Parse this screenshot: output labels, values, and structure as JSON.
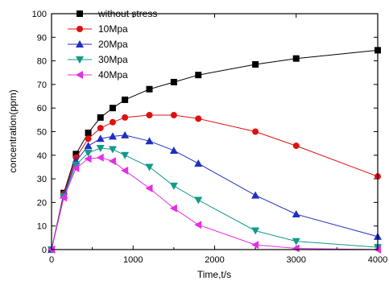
{
  "chart_data": {
    "type": "line",
    "title": "",
    "xlabel": "Time,t/s",
    "ylabel": "concentration(ppm)",
    "xlim": [
      0,
      4000
    ],
    "ylim": [
      0,
      100
    ],
    "x_ticks": [
      0,
      1000,
      2000,
      3000,
      4000
    ],
    "y_ticks": [
      0,
      10,
      20,
      30,
      40,
      50,
      60,
      70,
      80,
      90,
      100
    ],
    "grid": false,
    "legend_position": "top-left",
    "series": [
      {
        "name": "without stress",
        "color": "#000000",
        "marker": "square",
        "x": [
          0,
          150,
          300,
          450,
          600,
          750,
          900,
          1200,
          1500,
          1800,
          2500,
          3000,
          4000
        ],
        "y": [
          0,
          24,
          40.5,
          49.5,
          56,
          60,
          63.5,
          68,
          71,
          74,
          78.5,
          81,
          84.5
        ]
      },
      {
        "name": "10Mpa",
        "color": "#dd1111",
        "marker": "circle",
        "x": [
          0,
          150,
          300,
          450,
          600,
          750,
          900,
          1200,
          1500,
          1800,
          2500,
          3000,
          4000
        ],
        "y": [
          0,
          23.5,
          39,
          47,
          51.5,
          54,
          56,
          57,
          57,
          55.5,
          50,
          44,
          31
        ]
      },
      {
        "name": "20Mpa",
        "color": "#1f2fbf",
        "marker": "triangle-up",
        "x": [
          0,
          150,
          300,
          450,
          600,
          750,
          900,
          1200,
          1500,
          1800,
          2500,
          3000,
          4000
        ],
        "y": [
          0,
          23,
          37.5,
          44,
          47,
          48,
          48.5,
          46,
          42,
          36.5,
          23,
          15,
          5.5
        ]
      },
      {
        "name": "30Mpa",
        "color": "#119a8a",
        "marker": "triangle-down",
        "x": [
          0,
          150,
          300,
          450,
          600,
          750,
          900,
          1200,
          1500,
          1800,
          2500,
          3000,
          4000
        ],
        "y": [
          0,
          22.5,
          36,
          41,
          43,
          42.5,
          40,
          35,
          27,
          21,
          8,
          3.5,
          1
        ]
      },
      {
        "name": "40Mpa",
        "color": "#e62ee6",
        "marker": "triangle-left",
        "x": [
          0,
          150,
          300,
          450,
          600,
          750,
          900,
          1200,
          1500,
          1800,
          2500,
          3000,
          4000
        ],
        "y": [
          0,
          22,
          34.5,
          38.5,
          39,
          37.5,
          33.5,
          26,
          17.5,
          10.5,
          2,
          0.5,
          0
        ]
      }
    ]
  }
}
